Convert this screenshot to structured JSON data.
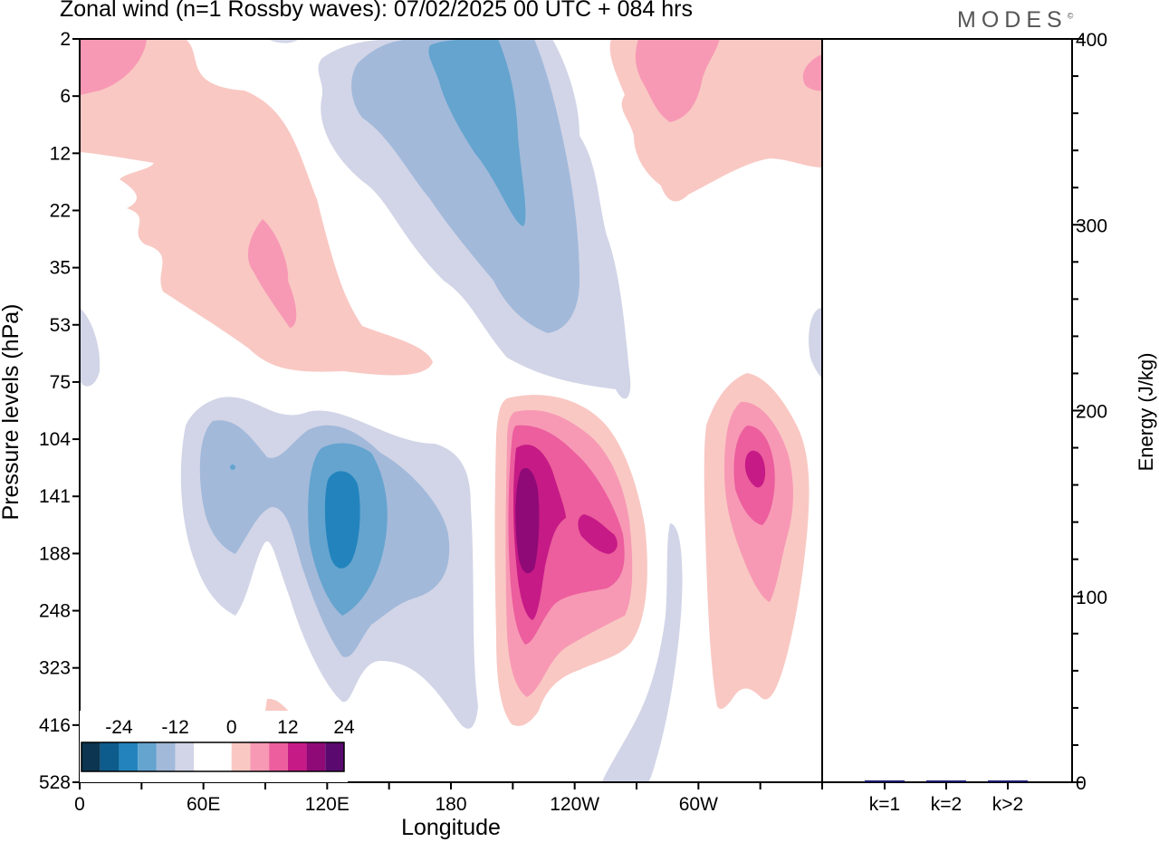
{
  "title": "Zonal wind (n=1 Rossby waves):  07/02/2025  00 UTC  + 084 hrs",
  "logo": "MODES",
  "logo_mark": "©",
  "chart_data": [
    {
      "type": "heatmap",
      "xlabel": "Longitude",
      "ylabel": "Pressure levels (hPa)",
      "xticks": [
        "0",
        "60E",
        "120E",
        "180",
        "120W",
        "60W"
      ],
      "yticks": [
        "2",
        "6",
        "12",
        "22",
        "35",
        "53",
        "75",
        "104",
        "141",
        "188",
        "248",
        "323",
        "416",
        "528"
      ],
      "legend": {
        "labels": [
          "-24",
          "-12",
          "0",
          "12",
          "24"
        ],
        "colors": [
          "#0b3550",
          "#0d5c8c",
          "#2384bd",
          "#64a4cf",
          "#a2b9da",
          "#d2d5e7",
          "#ffffff",
          "#ffffff",
          "#f9c8c3",
          "#f799b5",
          "#ec5e9d",
          "#c61a86",
          "#8f0a77",
          "#5a0a6e"
        ],
        "placement": "bottom-left"
      },
      "color_scale": {
        "negative": "blue",
        "positive": "pink"
      }
    },
    {
      "type": "bar",
      "categories": [
        "k=1",
        "k=2",
        "k>2"
      ],
      "values": [
        1,
        0.4,
        0.6
      ],
      "ylabel": "Energy (J/kg)",
      "yticks": [
        "0",
        "100",
        "200",
        "300",
        "400"
      ],
      "ylim": [
        0,
        400
      ],
      "bar_color": "#1a1a6e"
    }
  ]
}
